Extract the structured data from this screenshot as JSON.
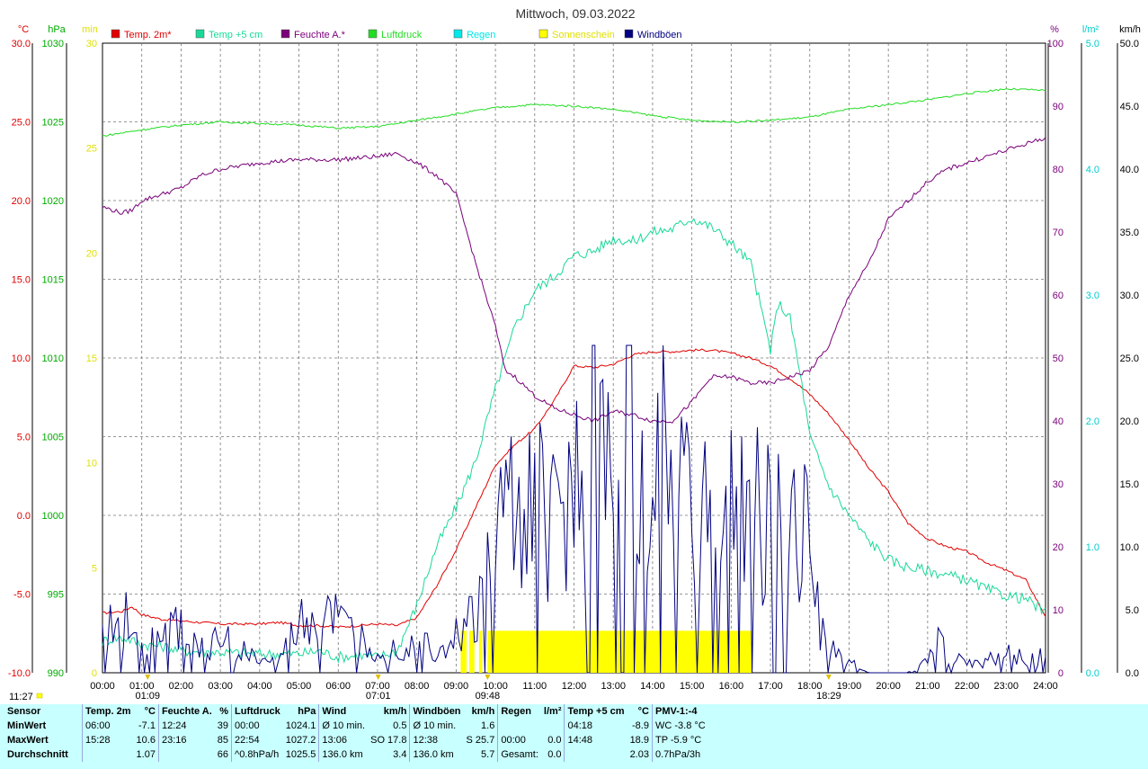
{
  "title": "Mittwoch, 09.03.2022",
  "colors": {
    "temp2m": "#e00000",
    "temp5cm": "#19d99a",
    "feuchte": "#7a007a",
    "luftdruck": "#22dd22",
    "regen": "#00e8e8",
    "sonne": "#ffff00",
    "wind": "#000080"
  },
  "chart_data": {
    "type": "line",
    "x_unit": "time",
    "xlim": [
      "00:00",
      "24:00"
    ],
    "x_ticks": [
      "00:00",
      "01:00",
      "02:00",
      "03:00",
      "04:00",
      "05:00",
      "06:00",
      "07:00",
      "08:00",
      "09:00",
      "10:00",
      "11:00",
      "12:00",
      "13:00",
      "14:00",
      "15:00",
      "16:00",
      "17:00",
      "18:00",
      "19:00",
      "20:00",
      "21:00",
      "22:00",
      "23:00",
      "24:00"
    ],
    "legend": [
      {
        "label": "Temp. 2m*",
        "color": "#e00000"
      },
      {
        "label": "Temp +5 cm",
        "color": "#19d99a"
      },
      {
        "label": "Feuchte A.*",
        "color": "#7a007a"
      },
      {
        "label": "Luftdruck",
        "color": "#22dd22"
      },
      {
        "label": "Regen",
        "color": "#00e8e8"
      },
      {
        "label": "Sonnenschein",
        "color": "#ffff00"
      },
      {
        "label": "Windböen",
        "color": "#000080"
      }
    ],
    "axes": [
      {
        "unit": "°C",
        "ticks": [
          "30.0",
          "25.0",
          "20.0",
          "15.0",
          "10.0",
          "5.0",
          "0.0",
          "-5.0",
          "-10.0"
        ],
        "ylim": [
          -10,
          30
        ],
        "color": "#e00000",
        "side": "left"
      },
      {
        "unit": "hPa",
        "ticks": [
          "1030",
          "1025",
          "1020",
          "1015",
          "1010",
          "1005",
          "1000",
          "995",
          "990"
        ],
        "ylim": [
          990,
          1030
        ],
        "color": "#00aa00",
        "side": "left"
      },
      {
        "unit": "min",
        "ticks": [
          "30",
          "25",
          "20",
          "15",
          "10",
          "5",
          "0"
        ],
        "ylim": [
          0,
          30
        ],
        "color": "#e0e000",
        "side": "left"
      },
      {
        "unit": "%",
        "ticks": [
          "100",
          "90",
          "80",
          "70",
          "60",
          "50",
          "40",
          "30",
          "20",
          "10",
          "0"
        ],
        "ylim": [
          0,
          100
        ],
        "color": "#7a007a",
        "side": "right"
      },
      {
        "unit": "l/m²",
        "ticks": [
          "5.0",
          "4.0",
          "3.0",
          "2.0",
          "1.0",
          "0.0"
        ],
        "ylim": [
          0,
          5
        ],
        "color": "#00cccc",
        "side": "right"
      },
      {
        "unit": "km/h",
        "ticks": [
          "50.0",
          "45.0",
          "40.0",
          "35.0",
          "30.0",
          "25.0",
          "20.0",
          "15.0",
          "10.0",
          "5.0",
          "0.0"
        ],
        "ylim": [
          0,
          50
        ],
        "color": "#000000",
        "side": "right"
      }
    ],
    "series": [
      {
        "name": "Temp. 2m*",
        "axis": "°C",
        "x": [
          0,
          0.5,
          0.75,
          1,
          1.5,
          2,
          3,
          4,
          4.5,
          5,
          5.5,
          6,
          6.5,
          7,
          7.5,
          8,
          8.5,
          9,
          9.5,
          10,
          10.5,
          11,
          11.5,
          12,
          12.5,
          13,
          13.5,
          14,
          14.5,
          15,
          15.5,
          16,
          16.5,
          17,
          17.5,
          18,
          18.5,
          19,
          19.5,
          20,
          20.5,
          21,
          21.5,
          22,
          22.5,
          23,
          23.5,
          24
        ],
        "values": [
          -6.2,
          -6.1,
          -5.8,
          -6.3,
          -6.6,
          -6.7,
          -6.9,
          -6.9,
          -6.8,
          -7.0,
          -7.0,
          -7.1,
          -7.0,
          -6.9,
          -7.0,
          -6.5,
          -4.5,
          -2.2,
          0.5,
          3.2,
          4.5,
          5.5,
          7.3,
          9.5,
          9.4,
          9.6,
          10.2,
          10.4,
          10.4,
          10.5,
          10.5,
          10.3,
          10.0,
          9.5,
          8.7,
          7.7,
          6.4,
          4.8,
          3.0,
          1.5,
          -0.5,
          -1.5,
          -2.0,
          -2.3,
          -3.0,
          -3.5,
          -4.1,
          -6.4
        ]
      },
      {
        "name": "Temp +5 cm",
        "axis": "°C",
        "x": [
          0,
          0.3,
          0.6,
          1,
          1.5,
          2,
          3,
          4,
          5,
          5.5,
          6,
          6.5,
          7,
          7.5,
          8,
          8.5,
          9,
          9.5,
          10,
          10.5,
          11,
          11.5,
          12,
          12.5,
          13,
          13.5,
          14,
          14.5,
          15,
          15.5,
          16,
          16.5,
          17,
          17.2,
          17.5,
          17.8,
          18,
          18.5,
          19,
          19.5,
          20,
          20.5,
          21,
          21.5,
          22,
          22.5,
          23,
          23.5,
          24
        ],
        "values": [
          -8.0,
          -7.8,
          -7.8,
          -8.2,
          -8.3,
          -8.6,
          -8.7,
          -8.8,
          -8.8,
          -8.6,
          -9.0,
          -8.9,
          -9.0,
          -8.6,
          -5.7,
          -2.0,
          0.5,
          3.5,
          8.0,
          12.0,
          14.3,
          15.2,
          16.5,
          16.8,
          17.6,
          17.4,
          18.0,
          18.2,
          18.9,
          18.3,
          17.3,
          16.0,
          10.5,
          13.5,
          12.5,
          8.3,
          5.0,
          1.8,
          0.0,
          -1.6,
          -2.8,
          -3.3,
          -3.5,
          -3.8,
          -4.1,
          -4.7,
          -5.1,
          -5.3,
          -6.2
        ]
      },
      {
        "name": "Feuchte A.*",
        "axis": "%",
        "x": [
          0,
          0.5,
          0.75,
          1,
          1.5,
          2,
          2.5,
          3,
          4,
          5,
          6,
          7,
          7.5,
          8,
          8.5,
          9,
          9.5,
          10,
          10.25,
          10.5,
          11,
          11.5,
          12,
          12.5,
          13,
          13.5,
          14,
          14.5,
          15,
          15.5,
          16,
          16.5,
          17,
          17.5,
          18,
          18.5,
          19,
          19.5,
          20,
          20.5,
          21,
          21.5,
          22,
          22.5,
          23,
          23.5,
          24
        ],
        "values": [
          74,
          73,
          73.5,
          75,
          76,
          77,
          79,
          80,
          81,
          81.5,
          81.5,
          82,
          82.5,
          81,
          79,
          76,
          65,
          55,
          48,
          47,
          44,
          42,
          41,
          40,
          41.5,
          41,
          40,
          40,
          43,
          47,
          47,
          46,
          46,
          47,
          48,
          52,
          60,
          65,
          72,
          75,
          78,
          80,
          81,
          82,
          83,
          84,
          85
        ]
      },
      {
        "name": "Luftdruck",
        "axis": "hPa",
        "x": [
          0,
          1,
          2,
          3,
          4,
          5,
          6,
          7,
          8,
          9,
          10,
          11,
          12,
          13,
          14,
          15,
          16,
          17,
          18,
          19,
          20,
          21,
          22,
          23,
          24
        ],
        "values": [
          1024.1,
          1024.5,
          1024.8,
          1025.0,
          1024.9,
          1024.8,
          1024.6,
          1024.7,
          1025.1,
          1025.5,
          1025.9,
          1026.1,
          1026.0,
          1025.8,
          1025.4,
          1025.1,
          1025.0,
          1025.1,
          1025.3,
          1025.8,
          1026.1,
          1026.4,
          1026.8,
          1027.1,
          1027.0
        ]
      },
      {
        "name": "Windböen",
        "axis": "km/h",
        "x": [
          0,
          0.5,
          1,
          1.5,
          2,
          2.5,
          3,
          3.5,
          4,
          4.5,
          5,
          5.5,
          5.75,
          6,
          6.5,
          7,
          7.5,
          8,
          8.5,
          9,
          9.5,
          9.75,
          10,
          10.5,
          11,
          11.5,
          12,
          12.5,
          13,
          13.5,
          14,
          14.5,
          15,
          15.5,
          16,
          16.5,
          17,
          17.5,
          18,
          18.25,
          18.5,
          19,
          19.5,
          20,
          20.5,
          21,
          21.25,
          21.5,
          22,
          22.5,
          23,
          23.5,
          24
        ],
        "values": [
          3,
          5,
          4,
          3,
          4,
          2,
          3,
          2,
          1,
          1,
          4,
          5,
          6,
          4,
          3,
          2,
          2,
          3,
          2,
          3,
          5,
          8,
          12,
          15,
          14,
          13,
          17,
          21,
          24,
          22,
          20,
          17,
          15,
          14,
          14,
          15,
          13,
          14,
          12,
          5,
          2,
          1,
          0,
          0,
          0,
          1,
          5,
          2,
          1,
          1,
          2,
          1,
          2
        ]
      }
    ],
    "bars": [
      {
        "name": "Sonnenschein",
        "axis": "min",
        "intervals": [
          [
            "09:07",
            "09:16"
          ],
          [
            "09:20",
            "09:28"
          ],
          [
            "09:35",
            "09:40"
          ],
          [
            "09:48",
            "16:32"
          ]
        ],
        "value": 2
      }
    ],
    "markers": [
      {
        "label": "01:09",
        "x": "01:09"
      },
      {
        "label": "07:01",
        "x": "07:01"
      },
      {
        "label": "09:48",
        "x": "09:48"
      },
      {
        "label": "18:29",
        "x": "18:29"
      }
    ]
  },
  "clock": "11:27",
  "stats": {
    "headers": [
      "Sensor",
      "Temp. 2m",
      "°C",
      "Feuchte A.",
      "%",
      "Luftdruck",
      "hPa",
      "Wind",
      "km/h",
      "Windböen",
      "km/h",
      "Regen",
      "l/m²",
      "Temp +5 cm",
      "°C",
      "PMV-1:-4"
    ],
    "rows": [
      {
        "label": "MinWert",
        "cells": [
          "06:00",
          "-7.1",
          "12:24",
          "39",
          "00:00",
          "1024.1",
          "Ø 10 min.",
          "0.5",
          "Ø 10 min.",
          "1.6",
          "",
          "",
          "04:18",
          "-8.9",
          "WC -3.8 °C"
        ]
      },
      {
        "label": "MaxWert",
        "cells": [
          "15:28",
          "10.6",
          "23:16",
          "85",
          "22:54",
          "1027.2",
          "13:06",
          "SO 17.8",
          "12:38",
          "S 25.7",
          "00:00",
          "0.0",
          "14:48",
          "18.9",
          "TP -5.9 °C"
        ]
      },
      {
        "label": "Durchschnitt",
        "cells": [
          "",
          "1.07",
          "",
          "66",
          "^0.8hPa/h",
          "1025.5",
          "136.0 km",
          "3.4",
          "136.0 km",
          "5.7",
          "Gesamt:",
          "0.0",
          "",
          "2.03",
          "0.7hPa/3h"
        ]
      }
    ]
  }
}
